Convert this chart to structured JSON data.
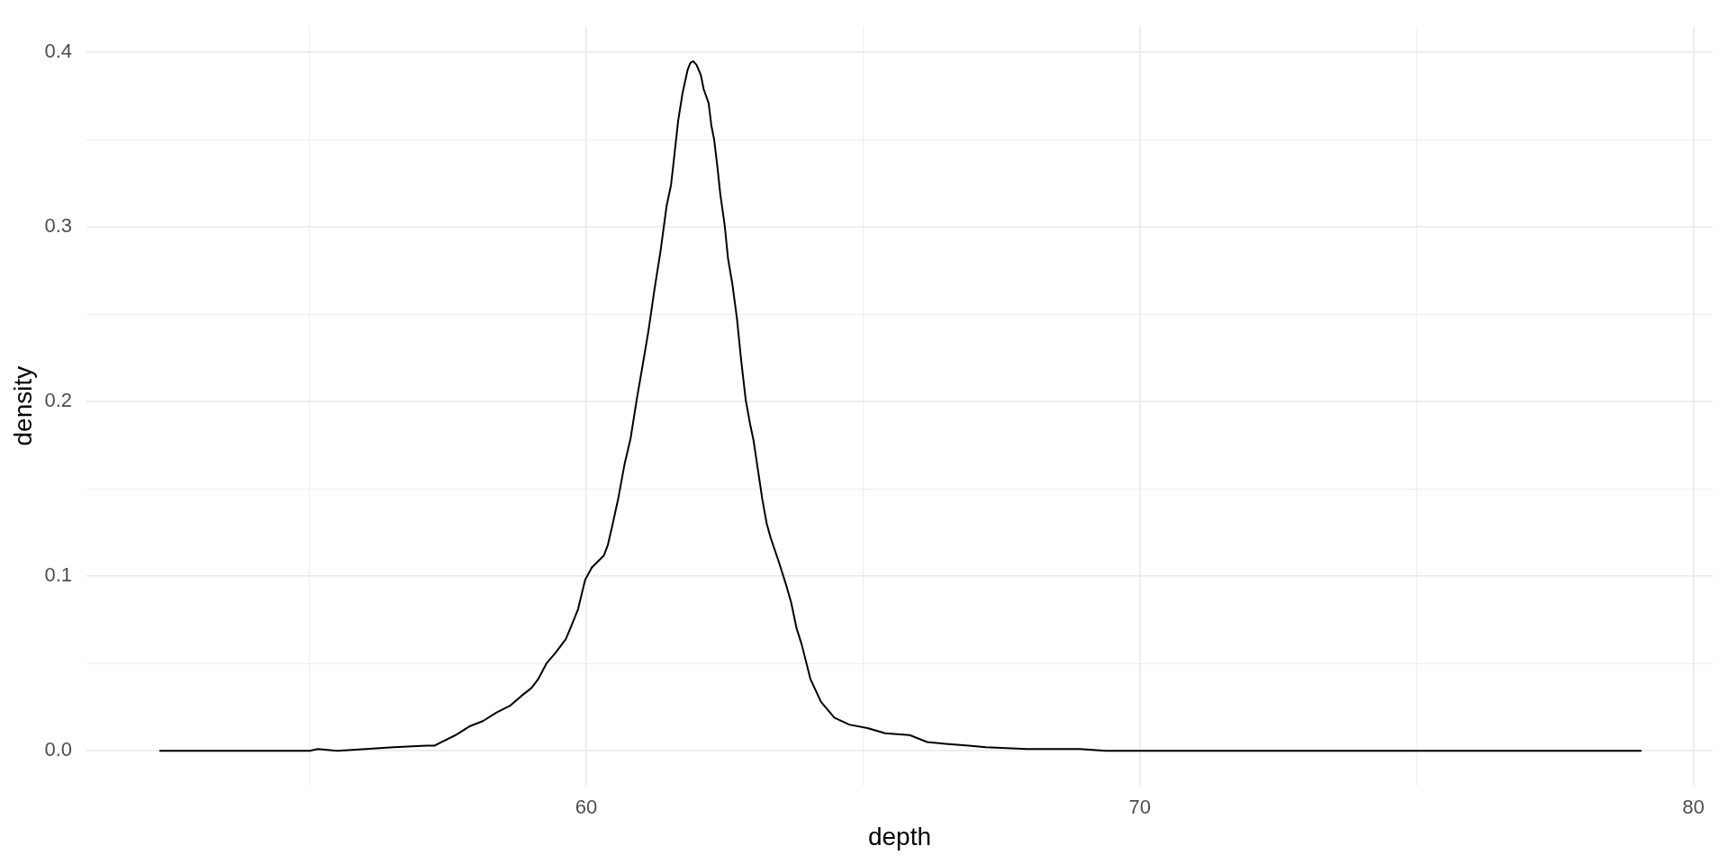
{
  "chart_data": {
    "type": "line",
    "xlabel": "depth",
    "ylabel": "density",
    "color": "#000000",
    "marker": "none",
    "grid": true,
    "x": [
      52.3,
      55.0,
      55.15,
      55.5,
      56.02,
      56.52,
      57.11,
      57.26,
      57.64,
      57.89,
      58.13,
      58.38,
      58.63,
      58.85,
      59.01,
      59.13,
      59.28,
      59.44,
      59.63,
      59.71,
      59.85,
      59.98,
      60.1,
      60.32,
      60.39,
      60.47,
      60.58,
      60.69,
      60.8,
      60.91,
      61.04,
      61.12,
      61.23,
      61.34,
      61.45,
      61.53,
      61.58,
      61.66,
      61.74,
      61.83,
      61.88,
      61.93,
      61.99,
      62.07,
      62.12,
      62.21,
      62.26,
      62.31,
      62.37,
      62.42,
      62.5,
      62.56,
      62.64,
      62.72,
      62.8,
      62.88,
      62.96,
      63.02,
      63.1,
      63.18,
      63.26,
      63.33,
      63.48,
      63.61,
      63.7,
      63.8,
      63.89,
      64.05,
      64.24,
      64.48,
      64.75,
      65.08,
      65.4,
      65.84,
      66.16,
      66.49,
      66.91,
      67.22,
      67.96,
      68.49,
      68.91,
      69.39,
      79.05
    ],
    "values": [
      0,
      0,
      0.001,
      0,
      0.001,
      0.002,
      0.003,
      0.003,
      0.009,
      0.014,
      0.017,
      0.022,
      0.026,
      0.032,
      0.036,
      0.041,
      0.05,
      0.056,
      0.064,
      0.07,
      0.081,
      0.098,
      0.105,
      0.112,
      0.118,
      0.129,
      0.145,
      0.164,
      0.179,
      0.201,
      0.225,
      0.24,
      0.264,
      0.286,
      0.312,
      0.324,
      0.338,
      0.361,
      0.377,
      0.39,
      0.394,
      0.395,
      0.393,
      0.387,
      0.379,
      0.371,
      0.358,
      0.35,
      0.334,
      0.319,
      0.301,
      0.282,
      0.267,
      0.248,
      0.223,
      0.201,
      0.187,
      0.178,
      0.161,
      0.144,
      0.13,
      0.122,
      0.108,
      0.095,
      0.085,
      0.07,
      0.061,
      0.041,
      0.028,
      0.019,
      0.015,
      0.013,
      0.01,
      0.009,
      0.005,
      0.004,
      0.003,
      0.002,
      0.001,
      0.001,
      0.001,
      0,
      0
    ],
    "xlim": [
      50.97,
      80.35
    ],
    "ylim": [
      -0.02,
      0.415
    ],
    "xticks": [
      {
        "value": 55,
        "label": null
      },
      60,
      {
        "value": 65,
        "label": null
      },
      70,
      {
        "value": 75,
        "label": null
      },
      80
    ],
    "yticks": [
      {
        "value": 0,
        "label": "0.0"
      },
      {
        "value": 0.05,
        "label": null
      },
      0.1,
      {
        "value": 0.15,
        "label": null
      },
      0.2,
      {
        "value": 0.25,
        "label": null
      },
      0.3,
      {
        "value": 0.35,
        "label": null
      },
      0.4
    ]
  }
}
